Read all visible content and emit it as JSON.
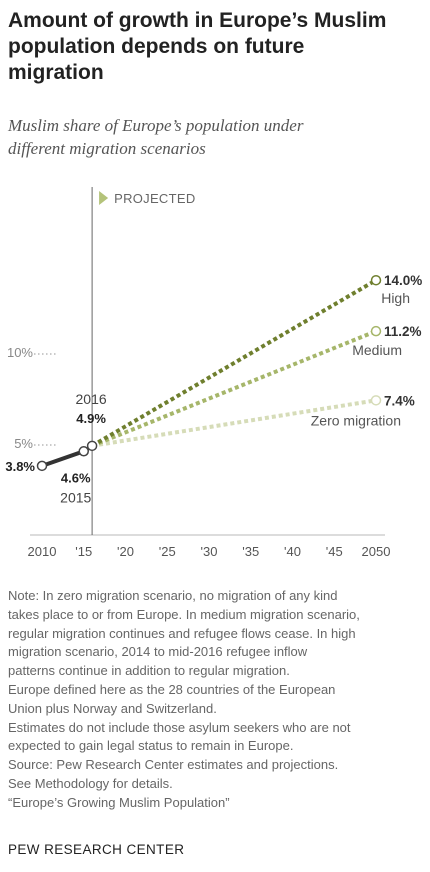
{
  "header": {
    "title_lines": [
      "Amount of growth in Europe’s Muslim",
      "population depends on future",
      "migration"
    ],
    "subtitle_lines": [
      "Muslim share of Europe’s population under",
      "different migration scenarios"
    ]
  },
  "chart_data": {
    "type": "line",
    "title": "Amount of growth in Europe’s Muslim population depends on future migration",
    "subtitle": "Muslim share of Europe’s population under different migration scenarios",
    "x_ticks": [
      {
        "value": 2010,
        "label": "2010"
      },
      {
        "value": 2015,
        "label": "'15"
      },
      {
        "value": 2020,
        "label": "'20"
      },
      {
        "value": 2025,
        "label": "'25"
      },
      {
        "value": 2030,
        "label": "'30"
      },
      {
        "value": 2035,
        "label": "'35"
      },
      {
        "value": 2040,
        "label": "'40"
      },
      {
        "value": 2045,
        "label": "'45"
      },
      {
        "value": 2050,
        "label": "2050"
      }
    ],
    "y_ticks": [
      {
        "value": 5,
        "label": "5%"
      },
      {
        "value": 10,
        "label": "10%"
      }
    ],
    "xlim": [
      2010,
      2050
    ],
    "ylim": [
      0,
      15
    ],
    "projection_marker": {
      "year": 2016,
      "label": "PROJECTED"
    },
    "historical": {
      "x": [
        2010,
        2015,
        2016
      ],
      "y": [
        3.8,
        4.6,
        4.9
      ],
      "labels": [
        {
          "value": "3.8%",
          "year": ""
        },
        {
          "value": "4.6%",
          "year": "2015"
        },
        {
          "value": "4.9%",
          "year": "2016"
        }
      ],
      "color": "#333333"
    },
    "series": [
      {
        "name": "High",
        "x": [
          2016,
          2050
        ],
        "y": [
          4.9,
          14.0
        ],
        "end_label": "14.0%",
        "color": "#6f7f2e"
      },
      {
        "name": "Medium",
        "x": [
          2016,
          2050
        ],
        "y": [
          4.9,
          11.2
        ],
        "end_label": "11.2%",
        "color": "#a6b66a"
      },
      {
        "name": "Zero migration",
        "x": [
          2016,
          2050
        ],
        "y": [
          4.9,
          7.4
        ],
        "end_label": "7.4%",
        "color": "#d6dcb8"
      }
    ],
    "grid": false,
    "legend": "direct labels at line ends"
  },
  "notes": [
    "Note: In zero migration scenario, no migration of any kind",
    "takes place to or from Europe. In medium migration scenario,",
    "regular migration continues and refugee flows cease. In high",
    "migration scenario, 2014 to mid-2016 refugee inflow",
    "patterns continue in addition to regular migration.",
    "Europe defined here as the 28 countries of the European",
    "Union plus Norway and Switzerland.",
    "Estimates do not include those asylum seekers who are not",
    "expected to gain legal status to remain in Europe.",
    "Source: Pew Research Center estimates and projections.",
    "See Methodology for details.",
    "“Europe’s Growing Muslim Population”"
  ],
  "brand": "PEW RESEARCH CENTER"
}
